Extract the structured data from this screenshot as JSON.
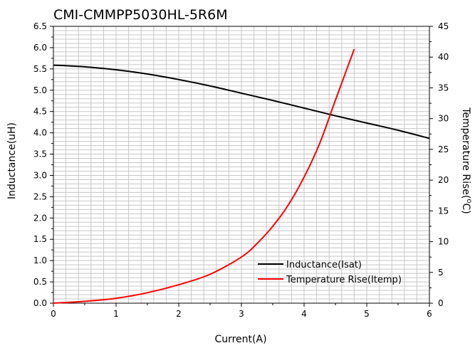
{
  "chart_data": {
    "type": "line",
    "title": "CMI-CMMPP5030HL-5R6M",
    "xlabel": "Current(A)",
    "ylabel_left": "Inductance(uH)",
    "ylabel_right": "Temperature Rise(°C)",
    "ylabel_right_parts": {
      "prefix": "Temperature Rise(",
      "superscript": "o",
      "suffix": "C)"
    },
    "x_range": [
      0,
      6
    ],
    "y_left_range": [
      0,
      6.5
    ],
    "y_right_range": [
      0,
      45
    ],
    "x_ticks": [
      "0",
      "1",
      "2",
      "3",
      "4",
      "5",
      "6"
    ],
    "y_left_ticks": [
      "0.0",
      "0.5",
      "1.0",
      "1.5",
      "2.0",
      "2.5",
      "3.0",
      "3.5",
      "4.0",
      "4.5",
      "5.0",
      "5.5",
      "6.0",
      "6.5"
    ],
    "y_right_ticks": [
      "0",
      "5",
      "10",
      "15",
      "20",
      "25",
      "30",
      "35",
      "40",
      "45"
    ],
    "grid": true,
    "legend_position": "bottom-right",
    "series": [
      {
        "name": "Inductance(Isat)",
        "axis": "left",
        "color": "#000000",
        "x": [
          0,
          0.5,
          1,
          1.5,
          2,
          2.5,
          3,
          3.5,
          4,
          4.5,
          5,
          5.5,
          6
        ],
        "y": [
          5.59,
          5.55,
          5.48,
          5.38,
          5.25,
          5.1,
          4.93,
          4.76,
          4.58,
          4.4,
          4.23,
          4.06,
          3.87
        ]
      },
      {
        "name": "Temperature Rise(Itemp)",
        "axis": "right",
        "color": "#ff0000",
        "x": [
          0,
          0.5,
          1,
          1.5,
          2,
          2.5,
          3,
          3.25,
          3.5,
          3.75,
          4,
          4.25,
          4.5,
          4.8
        ],
        "y": [
          0,
          0.3,
          0.8,
          1.7,
          3.0,
          4.7,
          7.5,
          9.7,
          12.5,
          16.0,
          20.5,
          26.0,
          33.0,
          41.3
        ]
      }
    ]
  }
}
